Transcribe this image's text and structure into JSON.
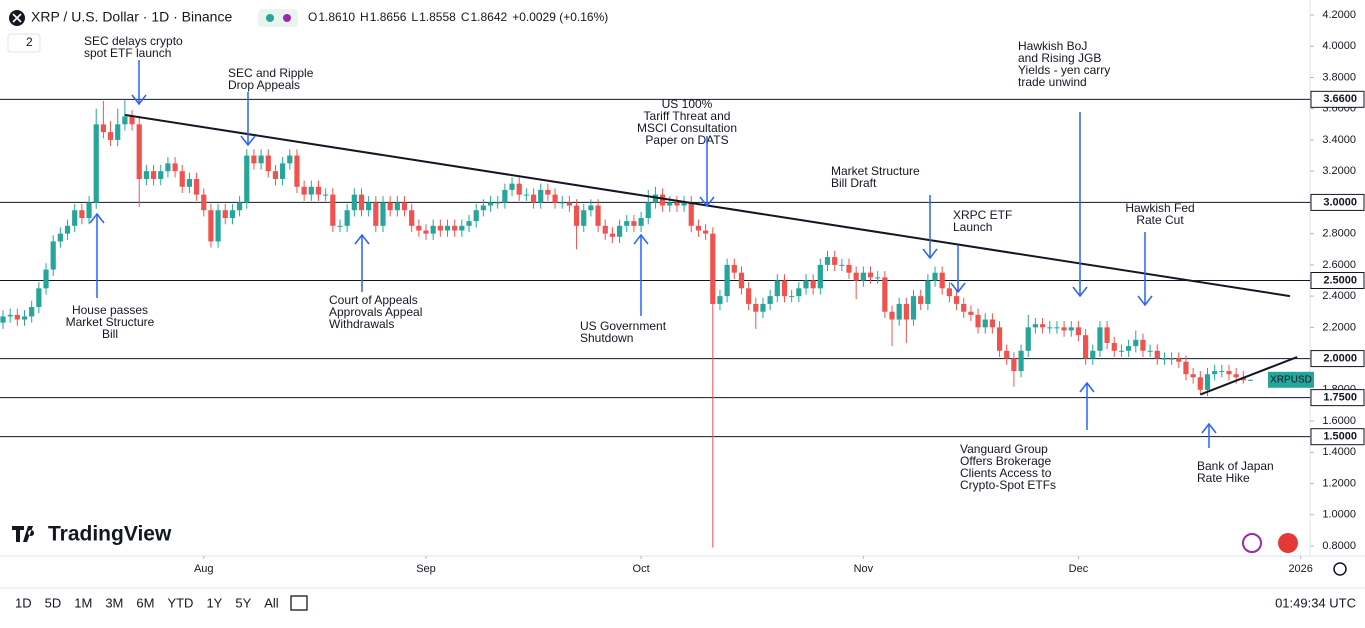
{
  "chart_data": {
    "type": "candlestick",
    "title": "XRP / U.S. Dollar · 1D · Binance",
    "ohlc_text": [
      "O",
      "1.8610",
      "H",
      "1.8656",
      "L",
      "1.8558",
      "C",
      "1.8642",
      "+0.0029 (+0.16%)"
    ],
    "indicator_count": "2",
    "series": [
      {
        "name": "XRPUSD",
        "up_color": "#26a69a",
        "down_color": "#ef5350",
        "open": [
          2.23,
          2.27,
          2.28,
          2.25,
          2.27,
          2.33,
          2.45,
          2.57,
          2.75,
          2.8,
          2.85,
          2.95,
          2.9,
          3.0,
          3.5,
          3.45,
          3.4,
          3.5,
          3.55,
          3.5,
          3.15,
          3.2,
          3.15,
          3.2,
          3.25,
          3.2,
          3.1,
          3.15,
          3.05,
          2.95,
          2.75,
          2.95,
          2.9,
          2.95,
          3.0,
          3.3,
          3.25,
          3.3,
          3.2,
          3.15,
          3.25,
          3.3,
          3.1,
          3.05,
          3.1,
          3.05,
          3.05,
          2.85,
          2.85,
          2.95,
          3.05,
          2.95,
          3.0,
          2.85,
          3.0,
          2.95,
          3.0,
          2.95,
          2.85,
          2.82,
          2.8,
          2.85,
          2.82,
          2.85,
          2.82,
          2.85,
          2.88,
          2.95,
          2.98,
          3.0,
          3.0,
          3.08,
          3.12,
          3.05,
          3.05,
          3.0,
          3.08,
          3.05,
          3.0,
          3.0,
          2.98,
          2.85,
          2.95,
          2.98,
          2.85,
          2.8,
          2.78,
          2.85,
          2.88,
          2.85,
          2.9,
          3.0,
          3.05,
          2.98,
          3.0,
          2.98,
          3.0,
          2.85,
          2.82,
          2.8,
          2.35,
          2.4,
          2.6,
          2.55,
          2.45,
          2.35,
          2.3,
          2.35,
          2.4,
          2.5,
          2.4,
          2.4,
          2.45,
          2.5,
          2.45,
          2.6,
          2.65,
          2.6,
          2.6,
          2.55,
          2.5,
          2.55,
          2.52,
          2.52,
          2.3,
          2.25,
          2.35,
          2.25,
          2.4,
          2.35,
          2.5,
          2.55,
          2.45,
          2.4,
          2.35,
          2.3,
          2.28,
          2.2,
          2.25,
          2.2,
          2.05,
          2.0,
          1.92,
          2.05,
          2.2,
          2.22,
          2.2,
          2.2,
          2.2,
          2.18,
          2.2,
          2.15,
          2.0,
          2.05,
          2.2,
          2.1,
          2.05,
          2.05,
          2.08,
          2.12,
          2.05,
          2.05,
          2.0,
          2.0,
          2.0,
          1.98,
          1.9,
          1.88,
          1.8,
          1.9,
          1.92,
          1.92,
          1.9,
          1.88,
          1.861
        ],
        "high": [
          2.31,
          2.32,
          2.32,
          2.31,
          2.37,
          2.49,
          2.61,
          2.79,
          2.84,
          2.89,
          2.99,
          2.99,
          3.04,
          3.6,
          3.65,
          3.52,
          3.6,
          3.66,
          3.59,
          3.54,
          3.24,
          3.24,
          3.24,
          3.29,
          3.29,
          3.24,
          3.19,
          3.19,
          3.09,
          2.99,
          2.99,
          2.99,
          2.99,
          3.04,
          3.34,
          3.34,
          3.34,
          3.34,
          3.24,
          3.29,
          3.34,
          3.34,
          3.14,
          3.14,
          3.14,
          3.09,
          3.09,
          2.89,
          2.99,
          3.09,
          3.09,
          3.04,
          3.04,
          3.04,
          3.04,
          3.04,
          3.04,
          2.99,
          2.89,
          2.86,
          2.89,
          2.89,
          2.89,
          2.89,
          2.89,
          2.92,
          2.99,
          3.02,
          3.04,
          3.04,
          3.12,
          3.16,
          3.16,
          3.09,
          3.09,
          3.12,
          3.12,
          3.09,
          3.04,
          3.04,
          3.02,
          2.99,
          3.02,
          3.02,
          2.89,
          2.84,
          2.89,
          2.92,
          2.92,
          2.94,
          3.08,
          3.1,
          3.09,
          3.04,
          3.04,
          3.04,
          3.04,
          2.89,
          2.86,
          2.84,
          2.44,
          2.64,
          2.64,
          2.59,
          2.49,
          2.39,
          2.39,
          2.44,
          2.54,
          2.54,
          2.44,
          2.49,
          2.54,
          2.54,
          2.64,
          2.69,
          2.69,
          2.64,
          2.64,
          2.59,
          2.59,
          2.59,
          2.56,
          2.56,
          2.34,
          2.39,
          2.39,
          2.44,
          2.44,
          2.54,
          2.59,
          2.59,
          2.49,
          2.44,
          2.39,
          2.34,
          2.32,
          2.29,
          2.29,
          2.24,
          2.09,
          2.04,
          2.09,
          2.28,
          2.26,
          2.26,
          2.24,
          2.24,
          2.24,
          2.24,
          2.24,
          2.19,
          2.09,
          2.24,
          2.24,
          2.14,
          2.09,
          2.12,
          2.18,
          2.16,
          2.09,
          2.09,
          2.04,
          2.04,
          2.04,
          2.02,
          1.94,
          1.92,
          1.94,
          1.96,
          1.96,
          1.96,
          1.94,
          1.92,
          1.8656
        ],
        "low": [
          2.19,
          2.23,
          2.21,
          2.21,
          2.23,
          2.29,
          2.41,
          2.53,
          2.71,
          2.76,
          2.81,
          2.86,
          2.86,
          2.96,
          3.41,
          3.36,
          3.36,
          3.46,
          3.46,
          2.97,
          3.11,
          3.11,
          3.11,
          3.16,
          3.16,
          3.06,
          3.06,
          3.01,
          2.91,
          2.71,
          2.71,
          2.86,
          2.86,
          2.91,
          2.96,
          3.21,
          3.21,
          3.16,
          3.11,
          3.11,
          3.21,
          3.06,
          3.01,
          3.01,
          3.01,
          3.01,
          2.81,
          2.81,
          2.81,
          2.91,
          2.91,
          2.91,
          2.81,
          2.81,
          2.91,
          2.91,
          2.91,
          2.81,
          2.78,
          2.76,
          2.76,
          2.78,
          2.78,
          2.78,
          2.78,
          2.81,
          2.84,
          2.91,
          2.94,
          2.96,
          2.96,
          3.04,
          3.01,
          3.01,
          2.96,
          2.96,
          3.01,
          2.96,
          2.96,
          2.94,
          2.7,
          2.81,
          2.91,
          2.81,
          2.76,
          2.74,
          2.74,
          2.81,
          2.81,
          2.81,
          2.86,
          2.96,
          2.94,
          2.94,
          2.94,
          2.94,
          2.81,
          2.78,
          2.76,
          0.79,
          2.31,
          2.36,
          2.51,
          2.41,
          2.31,
          2.19,
          2.26,
          2.31,
          2.36,
          2.36,
          2.36,
          2.36,
          2.41,
          2.41,
          2.41,
          2.56,
          2.56,
          2.56,
          2.51,
          2.38,
          2.46,
          2.48,
          2.48,
          2.26,
          2.08,
          2.21,
          2.1,
          2.21,
          2.31,
          2.31,
          2.46,
          2.41,
          2.36,
          2.31,
          2.26,
          2.24,
          2.16,
          2.16,
          2.16,
          2.01,
          1.96,
          1.82,
          1.88,
          2.01,
          2.16,
          2.16,
          2.16,
          2.16,
          2.14,
          2.14,
          2.11,
          1.96,
          1.96,
          2.01,
          2.06,
          2.01,
          2.01,
          2.01,
          2.04,
          2.01,
          2.01,
          1.96,
          1.96,
          1.96,
          1.94,
          1.86,
          1.84,
          1.77,
          1.76,
          1.86,
          1.88,
          1.86,
          1.84,
          1.84,
          1.8558
        ],
        "close": [
          2.27,
          2.28,
          2.25,
          2.27,
          2.33,
          2.45,
          2.57,
          2.75,
          2.8,
          2.85,
          2.95,
          2.9,
          3.0,
          3.5,
          3.45,
          3.4,
          3.5,
          3.55,
          3.5,
          3.15,
          3.2,
          3.15,
          3.2,
          3.25,
          3.2,
          3.1,
          3.15,
          3.05,
          2.95,
          2.75,
          2.95,
          2.9,
          2.95,
          3.0,
          3.3,
          3.25,
          3.3,
          3.2,
          3.15,
          3.25,
          3.3,
          3.1,
          3.05,
          3.1,
          3.05,
          3.05,
          2.85,
          2.85,
          2.95,
          3.05,
          2.95,
          3.0,
          2.85,
          3.0,
          2.95,
          3.0,
          2.95,
          2.85,
          2.82,
          2.8,
          2.85,
          2.82,
          2.85,
          2.82,
          2.85,
          2.88,
          2.95,
          2.98,
          3.0,
          3.0,
          3.08,
          3.12,
          3.05,
          3.05,
          3.0,
          3.08,
          3.05,
          3.0,
          3.0,
          2.98,
          2.85,
          2.95,
          2.98,
          2.85,
          2.8,
          2.78,
          2.85,
          2.88,
          2.85,
          2.9,
          3.0,
          3.05,
          2.98,
          3.0,
          2.98,
          3.0,
          2.85,
          2.82,
          2.8,
          2.35,
          2.4,
          2.6,
          2.55,
          2.45,
          2.35,
          2.3,
          2.35,
          2.4,
          2.5,
          2.4,
          2.4,
          2.45,
          2.5,
          2.45,
          2.6,
          2.65,
          2.6,
          2.6,
          2.55,
          2.5,
          2.55,
          2.52,
          2.52,
          2.3,
          2.25,
          2.35,
          2.25,
          2.4,
          2.35,
          2.5,
          2.55,
          2.45,
          2.4,
          2.35,
          2.3,
          2.28,
          2.2,
          2.25,
          2.2,
          2.05,
          2.0,
          1.92,
          2.05,
          2.2,
          2.22,
          2.2,
          2.2,
          2.2,
          2.18,
          2.2,
          2.15,
          2.0,
          2.05,
          2.2,
          2.1,
          2.05,
          2.05,
          2.08,
          2.12,
          2.05,
          2.05,
          2.0,
          2.0,
          2.0,
          1.98,
          1.9,
          1.88,
          1.8,
          1.9,
          1.92,
          1.92,
          1.9,
          1.88,
          1.861,
          1.8642
        ]
      }
    ],
    "xlim": [
      -0.42,
      182.3
    ],
    "xticks": [
      {
        "value": 28,
        "label": "Aug"
      },
      {
        "value": 59,
        "label": "Sep"
      },
      {
        "value": 89,
        "label": "Oct"
      },
      {
        "value": 120,
        "label": "Nov"
      },
      {
        "value": 150,
        "label": "Dec"
      },
      {
        "value": 181,
        "label": "2026"
      }
    ],
    "ylim": [
      0.736,
      4.296
    ],
    "yticks": [
      {
        "value": 0.8,
        "label": "0.8000"
      },
      {
        "value": 1.0,
        "label": "1.0000"
      },
      {
        "value": 1.2,
        "label": "1.2000"
      },
      {
        "value": 1.4,
        "label": "1.4000"
      },
      {
        "value": 1.6,
        "label": "1.6000"
      },
      {
        "value": 1.8,
        "label": "1.8000"
      },
      {
        "value": 2.0,
        "label": "2.0000"
      },
      {
        "value": 2.2,
        "label": "2.2000"
      },
      {
        "value": 2.4,
        "label": "2.4000"
      },
      {
        "value": 2.6,
        "label": "2.6000"
      },
      {
        "value": 2.8,
        "label": "2.8000"
      },
      {
        "value": 3.0,
        "label": "3.0000"
      },
      {
        "value": 3.2,
        "label": "3.2000"
      },
      {
        "value": 3.4,
        "label": "3.4000"
      },
      {
        "value": 3.6,
        "label": "3.6000"
      },
      {
        "value": 3.8,
        "label": "3.8000"
      },
      {
        "value": 4.0,
        "label": "4.0000"
      },
      {
        "value": 4.2,
        "label": "4.2000"
      }
    ],
    "grid": false,
    "levels": [
      {
        "value": 3.66,
        "label": "3.6600"
      },
      {
        "value": 3.0,
        "label": "3.0000"
      },
      {
        "value": 2.5,
        "label": "2.5000"
      },
      {
        "value": 2.0,
        "label": "2.0000"
      },
      {
        "value": 1.75,
        "label": "1.7500"
      },
      {
        "value": 1.5,
        "label": "1.5000"
      }
    ],
    "trendlines": [
      {
        "x": [
          17,
          179.5
        ],
        "y": [
          3.56,
          2.4
        ]
      },
      {
        "x": [
          167,
          180.5
        ],
        "y": [
          1.77,
          2.01
        ]
      }
    ],
    "annotations": [
      {
        "text": [
          "SEC delays crypto",
          "spot ETF launch"
        ]
      },
      {
        "text": [
          "SEC and Ripple",
          "Drop Appeals"
        ]
      },
      {
        "text": [
          "US 100%",
          "Tariff Threat and",
          "MSCI Consultation",
          "Paper on DATS"
        ]
      },
      {
        "text": [
          "Market Structure",
          "Bill Draft"
        ]
      },
      {
        "text": [
          "XRPC ETF",
          "Launch"
        ]
      },
      {
        "text": [
          "Hawkish BoJ",
          "and Rising JGB",
          "Yields - yen carry",
          "trade unwind"
        ]
      },
      {
        "text": [
          "Hawkish Fed",
          "Rate Cut"
        ]
      },
      {
        "text": [
          "House passes",
          "Market Structure",
          "Bill"
        ]
      },
      {
        "text": [
          "Court of Appeals",
          "Approvals Appeal",
          "Withdrawals"
        ]
      },
      {
        "text": [
          "US Government",
          "Shutdown"
        ]
      },
      {
        "text": [
          "Vanguard Group",
          "Offers Brokerage",
          "Clients Access to",
          "Crypto-Spot ETFs"
        ]
      },
      {
        "text": [
          "Bank of Japan",
          "Rate Hike"
        ]
      }
    ]
  },
  "logo": "TradingView",
  "toolbar": {
    "timeframes": [
      "1D",
      "5D",
      "1M",
      "3M",
      "6M",
      "YTD",
      "1Y",
      "5Y",
      "All"
    ],
    "clock": "01:49:34 UTC"
  }
}
